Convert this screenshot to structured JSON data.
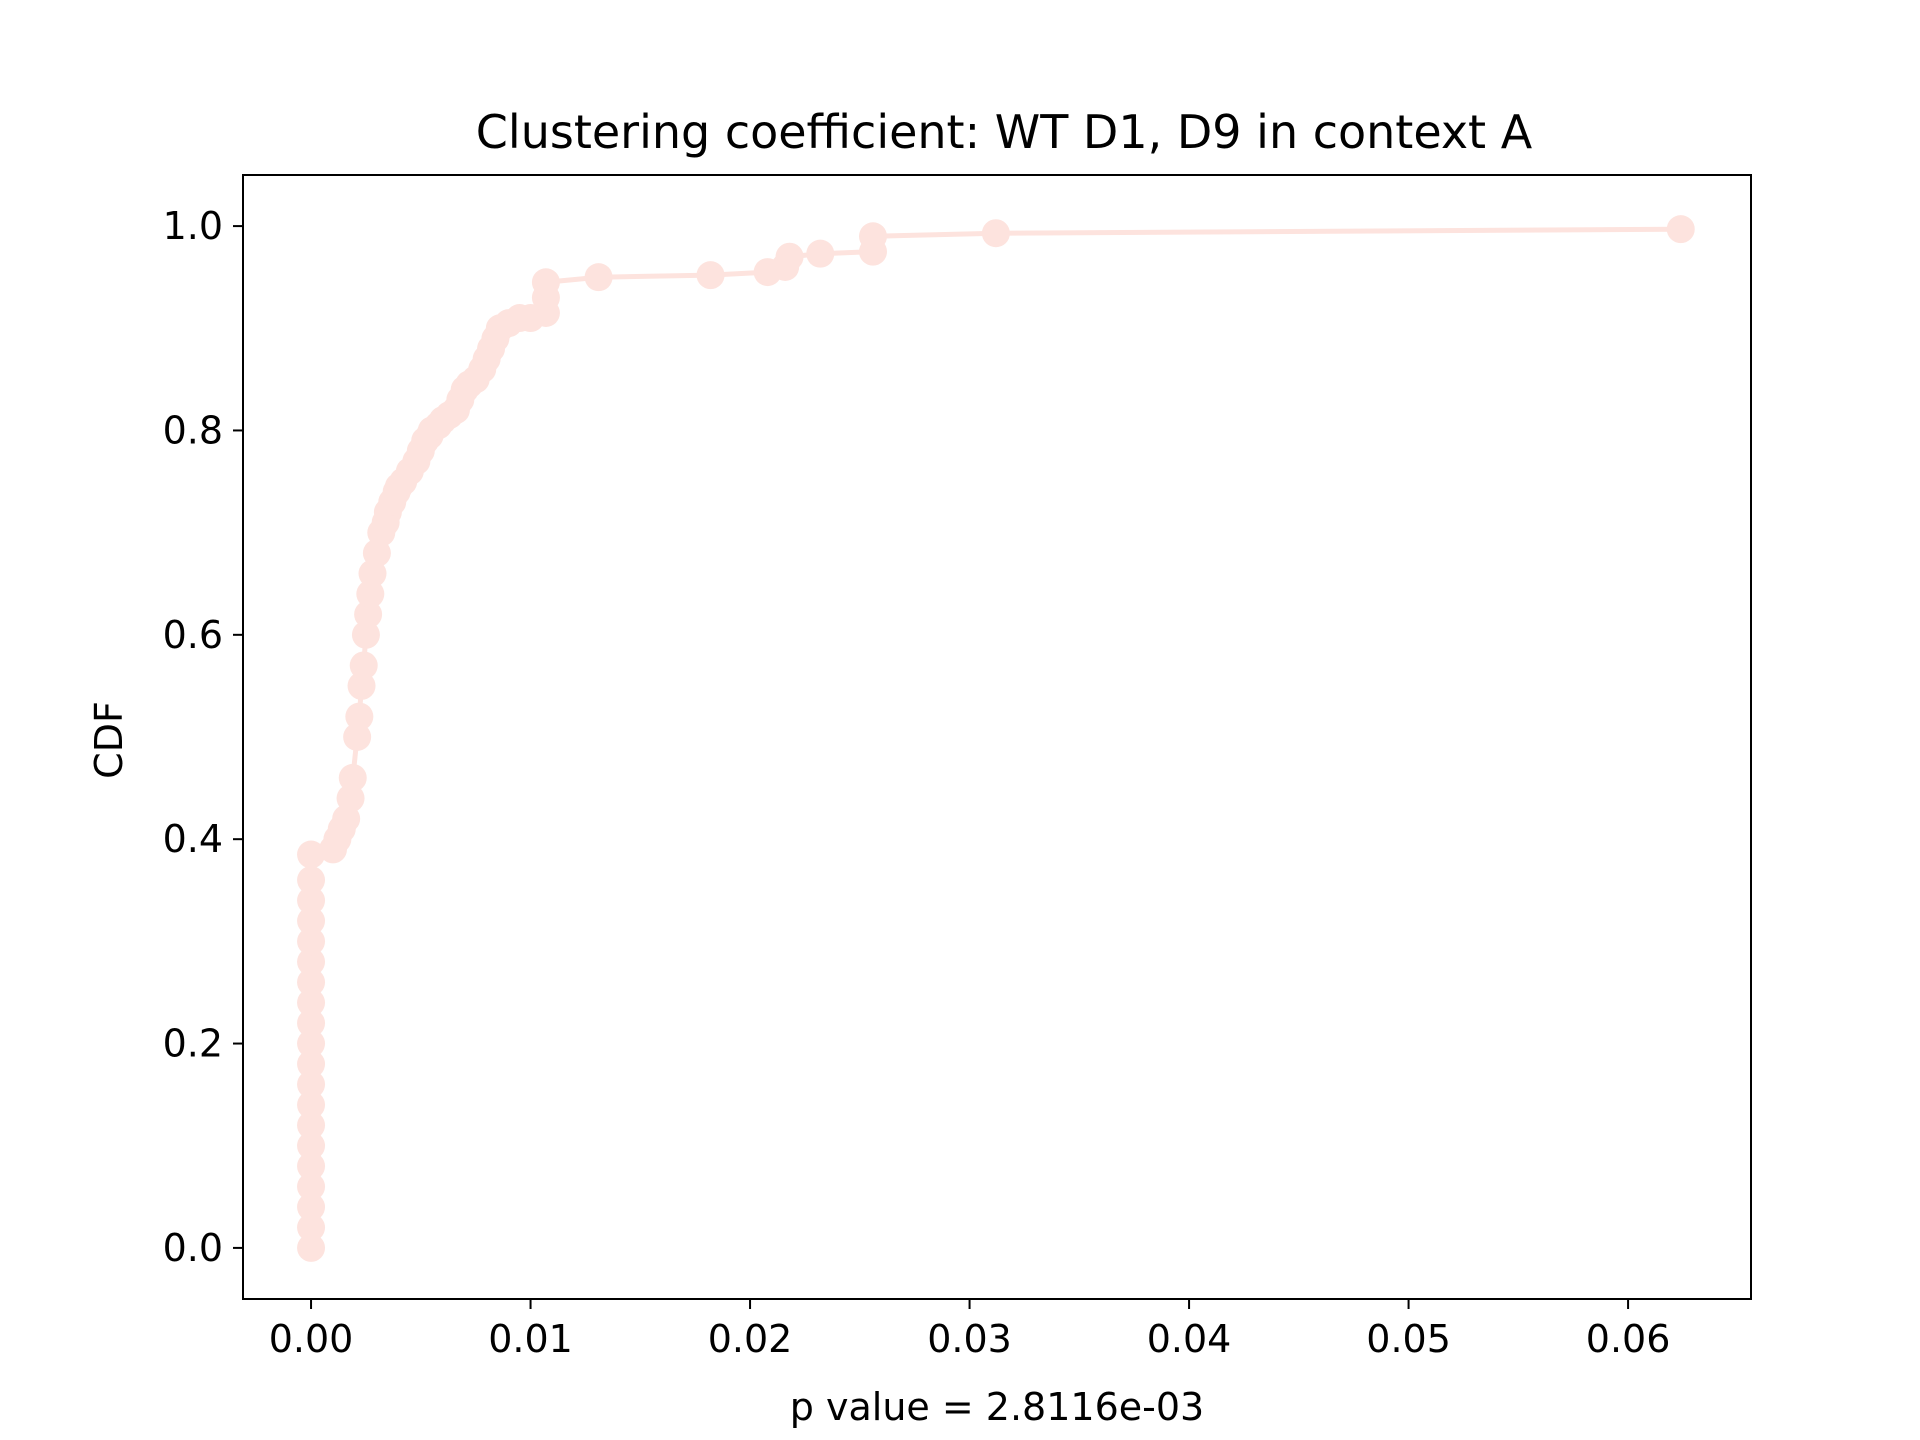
{
  "chart_data": {
    "type": "line",
    "title": "Clustering coefficient: WT D1, D9 in context A",
    "xlabel": "p value = 2.8116e-03",
    "ylabel": "CDF",
    "xlim": [
      -0.0031,
      0.0656
    ],
    "ylim": [
      -0.05,
      1.05
    ],
    "xticks": [
      0.0,
      0.01,
      0.02,
      0.03,
      0.04,
      0.05,
      0.06
    ],
    "xtick_labels": [
      "0.00",
      "0.01",
      "0.02",
      "0.03",
      "0.04",
      "0.05",
      "0.06"
    ],
    "yticks": [
      0.0,
      0.2,
      0.4,
      0.6,
      0.8,
      1.0
    ],
    "ytick_labels": [
      "0.0",
      "0.2",
      "0.4",
      "0.6",
      "0.8",
      "1.0"
    ],
    "grid": false,
    "legend": "none",
    "series": [
      {
        "color": "#fde3de",
        "marker": "circle",
        "x": [
          0.0,
          0.0,
          0.0,
          0.0,
          0.0,
          0.0,
          0.0,
          0.0,
          0.0,
          0.0,
          0.0,
          0.0,
          0.0,
          0.0,
          0.0,
          0.0,
          0.0,
          0.0,
          0.0,
          0.0,
          0.001,
          0.0012,
          0.0014,
          0.0016,
          0.0018,
          0.0019,
          0.0021,
          0.0022,
          0.0023,
          0.0024,
          0.0025,
          0.0026,
          0.0027,
          0.0028,
          0.003,
          0.0032,
          0.0034,
          0.0035,
          0.0037,
          0.0039,
          0.004,
          0.0042,
          0.0045,
          0.0048,
          0.005,
          0.0052,
          0.0054,
          0.0055,
          0.0058,
          0.006,
          0.0063,
          0.0066,
          0.0068,
          0.007,
          0.0072,
          0.0075,
          0.0078,
          0.008,
          0.0082,
          0.0084,
          0.0086,
          0.009,
          0.0095,
          0.01,
          0.0107,
          0.0107,
          0.0107,
          0.0131,
          0.0182,
          0.0208,
          0.0216,
          0.0218,
          0.0232,
          0.0256,
          0.0256,
          0.0312,
          0.0624
        ],
        "y": [
          0.0,
          0.02,
          0.04,
          0.06,
          0.08,
          0.1,
          0.12,
          0.14,
          0.16,
          0.18,
          0.2,
          0.22,
          0.24,
          0.26,
          0.28,
          0.3,
          0.32,
          0.34,
          0.36,
          0.385,
          0.39,
          0.4,
          0.41,
          0.42,
          0.44,
          0.46,
          0.5,
          0.52,
          0.55,
          0.57,
          0.6,
          0.62,
          0.64,
          0.66,
          0.68,
          0.7,
          0.71,
          0.72,
          0.73,
          0.74,
          0.745,
          0.75,
          0.76,
          0.77,
          0.78,
          0.79,
          0.795,
          0.8,
          0.805,
          0.81,
          0.815,
          0.82,
          0.83,
          0.84,
          0.845,
          0.85,
          0.86,
          0.87,
          0.88,
          0.89,
          0.9,
          0.905,
          0.91,
          0.91,
          0.915,
          0.93,
          0.945,
          0.95,
          0.952,
          0.955,
          0.96,
          0.97,
          0.973,
          0.975,
          0.99,
          0.993,
          0.997
        ]
      }
    ]
  }
}
